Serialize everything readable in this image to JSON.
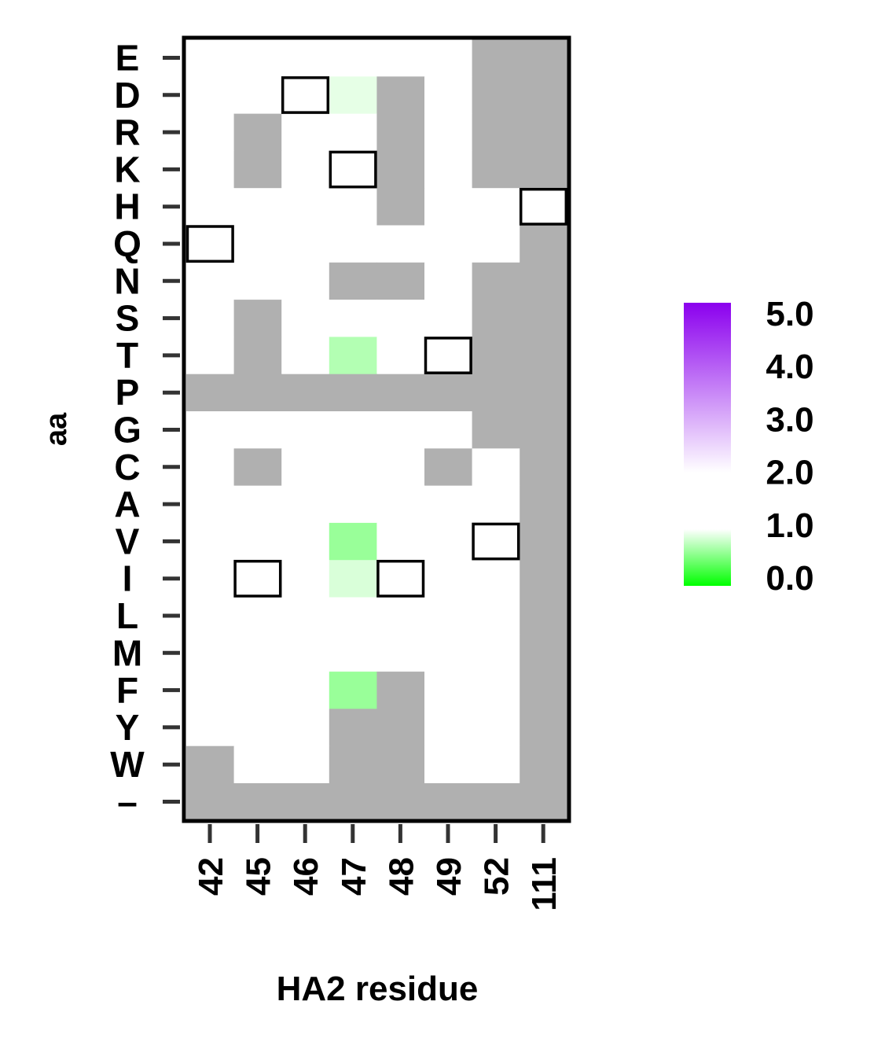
{
  "chart_data": {
    "type": "heatmap",
    "xlabel": "HA2 residue",
    "ylabel": "aa",
    "x_categories": [
      "42",
      "45",
      "46",
      "47",
      "48",
      "49",
      "52",
      "111"
    ],
    "y_categories": [
      "E",
      "D",
      "R",
      "K",
      "H",
      "Q",
      "N",
      "S",
      "T",
      "P",
      "G",
      "C",
      "A",
      "V",
      "I",
      "L",
      "M",
      "F",
      "Y",
      "W",
      "–"
    ],
    "missing_color": "#b0b0b0",
    "values": [
      [
        2.0,
        2.0,
        2.0,
        2.0,
        2.0,
        2.0,
        null,
        null
      ],
      [
        2.0,
        2.0,
        2.0,
        0.9,
        null,
        2.0,
        null,
        null
      ],
      [
        2.0,
        null,
        2.0,
        2.0,
        null,
        2.0,
        null,
        null
      ],
      [
        2.0,
        null,
        2.0,
        2.0,
        null,
        2.0,
        null,
        null
      ],
      [
        1.98,
        2.0,
        2.0,
        2.0,
        null,
        2.0,
        2.0,
        2.0
      ],
      [
        2.0,
        2.0,
        2.0,
        2.0,
        2.0,
        2.0,
        1.95,
        null
      ],
      [
        2.0,
        2.0,
        2.0,
        null,
        null,
        2.0,
        null,
        null
      ],
      [
        2.0,
        null,
        2.0,
        2.0,
        2.0,
        2.0,
        null,
        null
      ],
      [
        2.0,
        null,
        2.0,
        0.7,
        2.0,
        2.0,
        null,
        null
      ],
      [
        null,
        null,
        null,
        null,
        null,
        null,
        null,
        null
      ],
      [
        2.0,
        2.0,
        2.0,
        2.0,
        2.0,
        2.0,
        null,
        null
      ],
      [
        2.0,
        null,
        2.0,
        2.0,
        2.0,
        null,
        2.0,
        null
      ],
      [
        2.0,
        2.0,
        2.0,
        2.0,
        2.0,
        2.0,
        2.0,
        null
      ],
      [
        1.95,
        2.0,
        2.0,
        0.6,
        2.0,
        2.0,
        2.0,
        null
      ],
      [
        1.9,
        2.0,
        1.95,
        0.85,
        2.0,
        1.93,
        2.0,
        null
      ],
      [
        1.85,
        2.0,
        2.0,
        2.0,
        2.0,
        2.0,
        2.0,
        null
      ],
      [
        1.96,
        2.0,
        2.0,
        2.0,
        2.0,
        2.0,
        2.0,
        null
      ],
      [
        1.88,
        2.0,
        2.0,
        0.6,
        null,
        2.0,
        2.0,
        null
      ],
      [
        1.96,
        2.0,
        2.0,
        null,
        null,
        2.0,
        2.0,
        null
      ],
      [
        null,
        2.0,
        2.0,
        null,
        null,
        2.0,
        2.0,
        null
      ],
      [
        null,
        null,
        null,
        null,
        null,
        null,
        null,
        null
      ]
    ],
    "boxed_cells": [
      {
        "x": "46",
        "y": "D"
      },
      {
        "x": "47",
        "y": "K"
      },
      {
        "x": "111",
        "y": "H"
      },
      {
        "x": "42",
        "y": "Q"
      },
      {
        "x": "49",
        "y": "T"
      },
      {
        "x": "52",
        "y": "V"
      },
      {
        "x": "45",
        "y": "I"
      },
      {
        "x": "48",
        "y": "I"
      }
    ],
    "colorbar": {
      "ticks": [
        "5.0",
        "4.0",
        "3.0",
        "2.0",
        "1.0",
        "0.0"
      ],
      "range": [
        0,
        5
      ],
      "low_color": "#00ff00",
      "mid_color": "#ffffff",
      "high_color": "#8b00ee",
      "gap": [
        1.0,
        2.0
      ]
    },
    "grid": false
  }
}
